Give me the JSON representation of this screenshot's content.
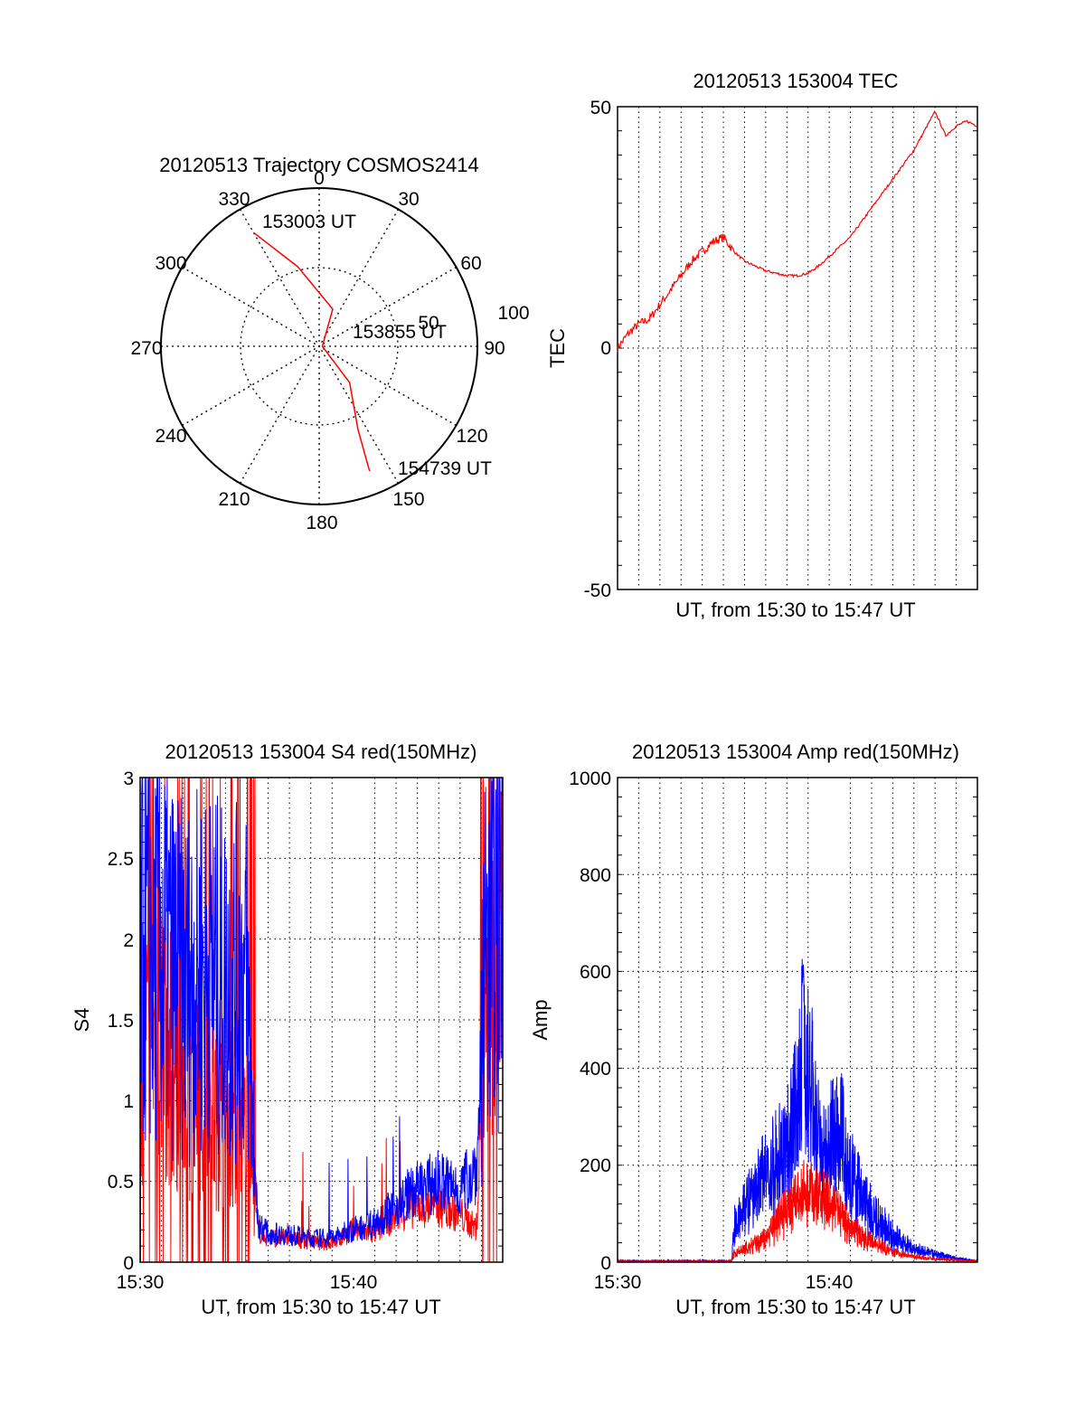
{
  "polar": {
    "title": "20120513 Trajectory COSMOS2414",
    "type": "polar-trajectory",
    "angle_labels": [
      "0",
      "30",
      "60",
      "90",
      "120",
      "150",
      "180",
      "210",
      "240",
      "270",
      "300",
      "330"
    ],
    "radius_labels": [
      "50",
      "100"
    ],
    "annotations": [
      "153003 UT",
      "153855 UT",
      "154739 UT"
    ],
    "line_color": "#ff0000",
    "trajectory": [
      [
        330,
        83
      ],
      [
        345,
        52
      ],
      [
        20,
        25
      ],
      [
        90,
        2
      ],
      [
        140,
        30
      ],
      [
        155,
        58
      ],
      [
        158,
        85
      ]
    ]
  },
  "tec": {
    "title": "20120513 153004 TEC",
    "ylabel": "TEC",
    "xlabel": "UT, from 15:30 to 15:47 UT",
    "yticks": [
      "50",
      "0",
      "-50"
    ],
    "ylim": [
      -50,
      50
    ],
    "xlim": [
      0,
      17
    ],
    "grid": "vertical dotted",
    "line_color": "#ff0000"
  },
  "s4": {
    "title": "20120513 153004 S4 red(150MHz)",
    "ylabel": "S4",
    "xlabel": "UT, from 15:30 to 15:47 UT",
    "yticks": [
      "3",
      "2.5",
      "2",
      "1.5",
      "1",
      "0.5",
      "0"
    ],
    "xticks": [
      "15:30",
      "15:40"
    ],
    "ylim": [
      0,
      3
    ],
    "xlim": [
      0,
      17
    ],
    "grid": "dotted",
    "colors": {
      "red": "#ff0000",
      "blue": "#0000ff"
    }
  },
  "amp": {
    "title": "20120513 153004 Amp red(150MHz)",
    "ylabel": "Amp",
    "xlabel": "UT, from 15:30 to 15:47 UT",
    "yticks": [
      "1000",
      "800",
      "600",
      "400",
      "200",
      "0"
    ],
    "xticks": [
      "15:30",
      "15:40"
    ],
    "ylim": [
      0,
      1000
    ],
    "xlim": [
      0,
      17
    ],
    "grid": "dotted",
    "colors": {
      "red": "#ff0000",
      "blue": "#0000ff"
    }
  },
  "chart_data": [
    {
      "type": "line",
      "title": "20120513 153004 TEC",
      "xlabel": "UT, from 15:30 to 15:47 UT",
      "ylabel": "TEC",
      "ylim": [
        -50,
        50
      ],
      "x_unit": "minutes after 15:30",
      "series": [
        {
          "x": [
            0,
            0.5,
            1,
            1.5,
            2,
            2.5,
            3,
            3.5,
            4,
            4.5,
            5,
            5.5,
            6,
            6.5,
            7,
            7.5,
            8,
            8.5,
            9,
            9.5,
            10,
            10.5,
            11,
            11.5,
            12,
            12.5,
            13,
            13.5,
            14,
            14.5,
            15,
            15.5,
            16,
            16.5,
            17
          ],
          "y": [
            0,
            3,
            5,
            6,
            9,
            12,
            15,
            18,
            20,
            22,
            23,
            20,
            18,
            17,
            16,
            15.5,
            15,
            15,
            15.5,
            17,
            19,
            21,
            23,
            26,
            29,
            32,
            35,
            38,
            41,
            45,
            49,
            44,
            46,
            47,
            46
          ]
        }
      ]
    },
    {
      "type": "line",
      "title": "20120513 153004 S4 red(150MHz)",
      "xlabel": "UT, from 15:30 to 15:47 UT",
      "ylabel": "S4",
      "ylim": [
        0,
        3
      ],
      "x_unit": "minutes after 15:30",
      "series": [
        {
          "color": "red",
          "x": [
            0,
            1,
            2,
            3,
            4,
            5,
            5.5,
            6,
            7,
            8,
            9,
            10,
            11,
            12,
            13,
            14,
            15,
            15.8,
            16.2,
            17
          ],
          "y": [
            1.5,
            1.6,
            1.2,
            1.1,
            1.0,
            1.0,
            0.2,
            0.15,
            0.15,
            0.12,
            0.12,
            0.2,
            0.18,
            0.3,
            0.35,
            0.35,
            0.3,
            0.2,
            2.0,
            2.5
          ]
        },
        {
          "color": "blue",
          "x": [
            0,
            1,
            2,
            3,
            4,
            5,
            5.5,
            6,
            7,
            8,
            9,
            10,
            11,
            12,
            13,
            14,
            15,
            15.8,
            16.2,
            17
          ],
          "y": [
            2.2,
            2.2,
            1.9,
            2.0,
            1.9,
            1.9,
            0.25,
            0.18,
            0.17,
            0.15,
            0.15,
            0.2,
            0.25,
            0.35,
            0.45,
            0.5,
            0.45,
            0.6,
            2.2,
            2.6
          ]
        }
      ]
    },
    {
      "type": "line",
      "title": "20120513 153004 Amp red(150MHz)",
      "xlabel": "UT, from 15:30 to 15:47 UT",
      "ylabel": "Amp",
      "ylim": [
        0,
        1000
      ],
      "x_unit": "minutes after 15:30",
      "series": [
        {
          "color": "red",
          "x": [
            0,
            2,
            4,
            5.4,
            5.5,
            6,
            7,
            7.5,
            8,
            8.5,
            9,
            9.5,
            10,
            10.5,
            11,
            12,
            13,
            14,
            15,
            16,
            17
          ],
          "y": [
            2,
            2,
            2,
            2,
            20,
            30,
            55,
            90,
            120,
            140,
            160,
            150,
            140,
            110,
            80,
            45,
            25,
            12,
            8,
            4,
            2
          ]
        },
        {
          "color": "blue",
          "x": [
            0,
            2,
            4,
            5.4,
            5.5,
            6,
            6.5,
            7,
            7.5,
            8,
            8.5,
            9,
            9.5,
            10,
            10.5,
            11,
            11.5,
            12,
            13,
            14,
            15,
            16,
            17
          ],
          "y": [
            3,
            3,
            3,
            3,
            80,
            120,
            150,
            200,
            220,
            260,
            350,
            420,
            290,
            250,
            310,
            200,
            150,
            110,
            60,
            30,
            18,
            8,
            3
          ]
        }
      ]
    }
  ]
}
